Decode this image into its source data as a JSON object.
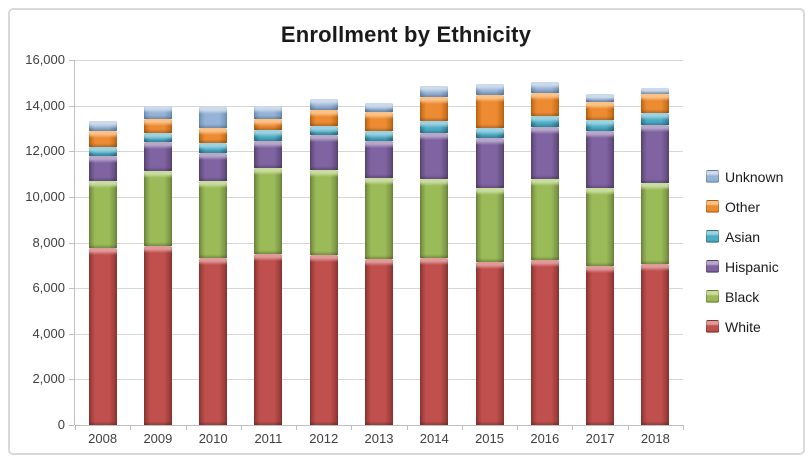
{
  "chart_data": {
    "type": "bar",
    "stacked": true,
    "title": "Enrollment by Ethnicity",
    "categories": [
      "2008",
      "2009",
      "2010",
      "2011",
      "2012",
      "2013",
      "2014",
      "2015",
      "2016",
      "2017",
      "2018"
    ],
    "series": [
      {
        "name": "White",
        "color": "#C0504D",
        "light": "#DE9B99",
        "dark": "#8E3634",
        "values": [
          7750,
          7850,
          7300,
          7500,
          7450,
          7270,
          7300,
          7150,
          7250,
          6950,
          7050
        ]
      },
      {
        "name": "Black",
        "color": "#9BBB59",
        "light": "#C9DCA0",
        "dark": "#71893F",
        "values": [
          2950,
          3290,
          3400,
          3760,
          3740,
          3580,
          3475,
          3260,
          3525,
          3460,
          3550
        ]
      },
      {
        "name": "Hispanic",
        "color": "#8064A2",
        "light": "#B7A8CA",
        "dark": "#5C4776",
        "values": [
          1110,
          1245,
          1245,
          1180,
          1540,
          1590,
          2045,
          2170,
          2290,
          2470,
          2555
        ]
      },
      {
        "name": "Asian",
        "color": "#4BACC6",
        "light": "#9CD1DF",
        "dark": "#347E92",
        "values": [
          390,
          435,
          405,
          510,
          360,
          460,
          510,
          420,
          500,
          510,
          510
        ]
      },
      {
        "name": "Other",
        "color": "#ED8B33",
        "light": "#FBC288",
        "dark": "#C06812",
        "values": [
          700,
          610,
          660,
          480,
          710,
          810,
          1070,
          1470,
          990,
          790,
          835
        ]
      },
      {
        "name": "Unknown",
        "color": "#95B3D7",
        "light": "#CCDAEB",
        "dark": "#6F93BC",
        "values": [
          420,
          560,
          945,
          540,
          480,
          410,
          450,
          470,
          470,
          340,
          290
        ]
      }
    ],
    "legend": {
      "position": "right",
      "order": [
        "Unknown",
        "Other",
        "Asian",
        "Hispanic",
        "Black",
        "White"
      ]
    },
    "y_axis": {
      "min": 0,
      "max": 16000,
      "step": 2000,
      "tick_labels": [
        "0",
        "2,000",
        "4,000",
        "6,000",
        "8,000",
        "10,000",
        "12,000",
        "14,000",
        "16,000"
      ]
    },
    "x_axis": {
      "tick_labels": [
        "2008",
        "2009",
        "2010",
        "2011",
        "2012",
        "2013",
        "2014",
        "2015",
        "2016",
        "2017",
        "2018"
      ]
    },
    "grid": true
  },
  "colors": {
    "gridline": "#D6D6D6",
    "axis": "#BFBFBF",
    "axis_text": "#404040",
    "title_text": "#1A1A1A",
    "frame_border": "#D9D9D9",
    "background": "#FFFFFF"
  }
}
